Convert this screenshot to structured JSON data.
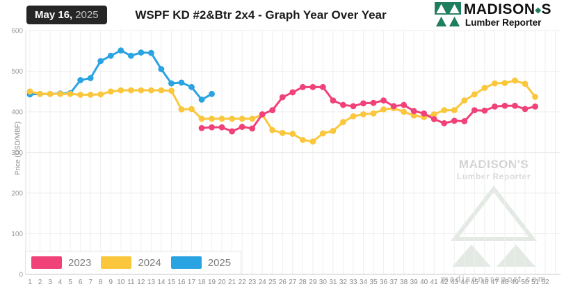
{
  "header": {
    "date_badge": {
      "date": "May 16,",
      "year": "2025"
    },
    "title": "WSPF KD #2&Btr 2x4 - Graph Year Over Year",
    "logo": {
      "name_part1": "MADISON",
      "name_mark": "◆",
      "name_part2": "S",
      "subtitle": "Lumber Reporter",
      "brand_green": "#1E7E5E"
    }
  },
  "watermark": {
    "brand": "MADISON'S",
    "subtitle": "Lumber Reporter",
    "website": "madisonsreport.com"
  },
  "chart_data": {
    "type": "line",
    "title": "WSPF KD #2&Btr 2x4 - Graph Year Over Year",
    "xlabel": "",
    "ylabel": "Price  (USD/MBF)",
    "x_ticks": [
      1,
      2,
      3,
      4,
      5,
      6,
      7,
      8,
      9,
      10,
      11,
      12,
      13,
      14,
      15,
      16,
      17,
      18,
      19,
      20,
      21,
      22,
      23,
      24,
      25,
      26,
      27,
      28,
      29,
      30,
      31,
      32,
      33,
      34,
      35,
      36,
      37,
      38,
      39,
      40,
      41,
      42,
      43,
      44,
      45,
      46,
      47,
      48,
      49,
      50,
      51,
      52
    ],
    "y_ticks": [
      0,
      100,
      200,
      300,
      400,
      500,
      600
    ],
    "ylim": [
      0,
      600
    ],
    "grid": true,
    "legend_position": "bottom-left",
    "x_unit": "week of year",
    "series": [
      {
        "name": "2023",
        "color": "#F04178",
        "start_week": 18,
        "values": [
          360,
          362,
          362,
          352,
          363,
          359,
          394,
          404,
          436,
          448,
          461,
          461,
          461,
          428,
          417,
          414,
          421,
          422,
          428,
          414,
          417,
          402,
          396,
          382,
          372,
          378,
          377,
          404,
          403,
          413,
          415,
          415,
          407,
          413
        ]
      },
      {
        "name": "2024",
        "color": "#FAC63C",
        "start_week": 1,
        "values": [
          450,
          444,
          444,
          444,
          444,
          442,
          442,
          443,
          450,
          453,
          453,
          453,
          453,
          453,
          452,
          406,
          407,
          383,
          383,
          383,
          383,
          383,
          383,
          393,
          355,
          348,
          346,
          331,
          327,
          347,
          353,
          375,
          389,
          394,
          396,
          406,
          409,
          400,
          391,
          387,
          394,
          404,
          404,
          428,
          443,
          459,
          470,
          471,
          477,
          469,
          437
        ]
      },
      {
        "name": "2025",
        "color": "#29A3E2",
        "start_week": 1,
        "values": [
          443,
          444,
          444,
          445,
          446,
          478,
          483,
          525,
          538,
          551,
          538,
          546,
          545,
          505,
          470,
          472,
          461,
          430,
          444
        ]
      }
    ]
  }
}
